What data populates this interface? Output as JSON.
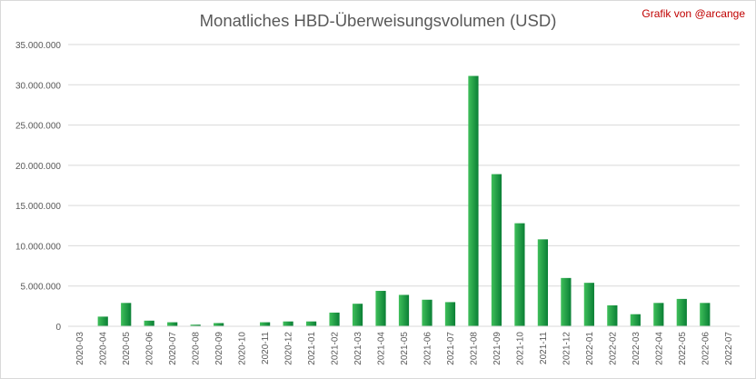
{
  "credit": "Grafik von @arcange",
  "colors": {
    "bar_light": "#3fbf5a",
    "bar_dark": "#0a7f35",
    "grid": "#d9d9d9",
    "text": "#595959",
    "credit": "#c00000"
  },
  "chart_data": {
    "type": "bar",
    "title": "Monatliches HBD-Überweisungsvolumen (USD)",
    "xlabel": "",
    "ylabel": "",
    "ylim": [
      0,
      35000000
    ],
    "yticks": [
      0,
      5000000,
      10000000,
      15000000,
      20000000,
      25000000,
      30000000,
      35000000
    ],
    "ytick_labels": [
      "0",
      "5.000.000",
      "10.000.000",
      "15.000.000",
      "20.000.000",
      "25.000.000",
      "30.000.000",
      "35.000.000"
    ],
    "grid": true,
    "legend": "none",
    "categories": [
      "2020-03",
      "2020-04",
      "2020-05",
      "2020-06",
      "2020-07",
      "2020-08",
      "2020-09",
      "2020-10",
      "2020-11",
      "2020-12",
      "2021-01",
      "2021-02",
      "2021-03",
      "2021-04",
      "2021-05",
      "2021-06",
      "2021-07",
      "2021-08",
      "2021-09",
      "2021-10",
      "2021-11",
      "2021-12",
      "2022-01",
      "2022-02",
      "2022-03",
      "2022-04",
      "2022-05",
      "2022-06",
      "2022-07"
    ],
    "values": [
      0,
      1200000,
      2900000,
      700000,
      500000,
      200000,
      400000,
      0,
      500000,
      600000,
      600000,
      1700000,
      2800000,
      4400000,
      3900000,
      3300000,
      3000000,
      31100000,
      18900000,
      12800000,
      10800000,
      6000000,
      5400000,
      2600000,
      1500000,
      2900000,
      3400000,
      2900000,
      0
    ]
  }
}
